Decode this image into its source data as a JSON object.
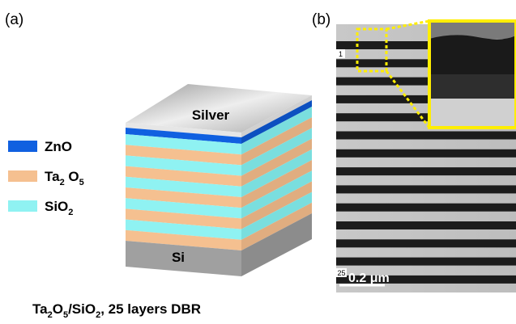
{
  "panels": {
    "a": {
      "label": "(a)",
      "top_layer": "Silver",
      "substrate": "Si",
      "legend": {
        "items": [
          {
            "parts": [
              "ZnO"
            ]
          },
          {
            "parts": [
              "Ta",
              "2",
              " O",
              "5"
            ]
          },
          {
            "parts": [
              "SiO",
              "2"
            ]
          }
        ]
      },
      "caption": {
        "parts": [
          "Ta",
          "2",
          "O",
          "5",
          "/SiO",
          "2",
          ", 25 layers DBR"
        ]
      }
    },
    "b": {
      "label": "(b)",
      "first_layer": "1",
      "last_layer": "25",
      "scale_bar": "0.2 μm"
    }
  }
}
